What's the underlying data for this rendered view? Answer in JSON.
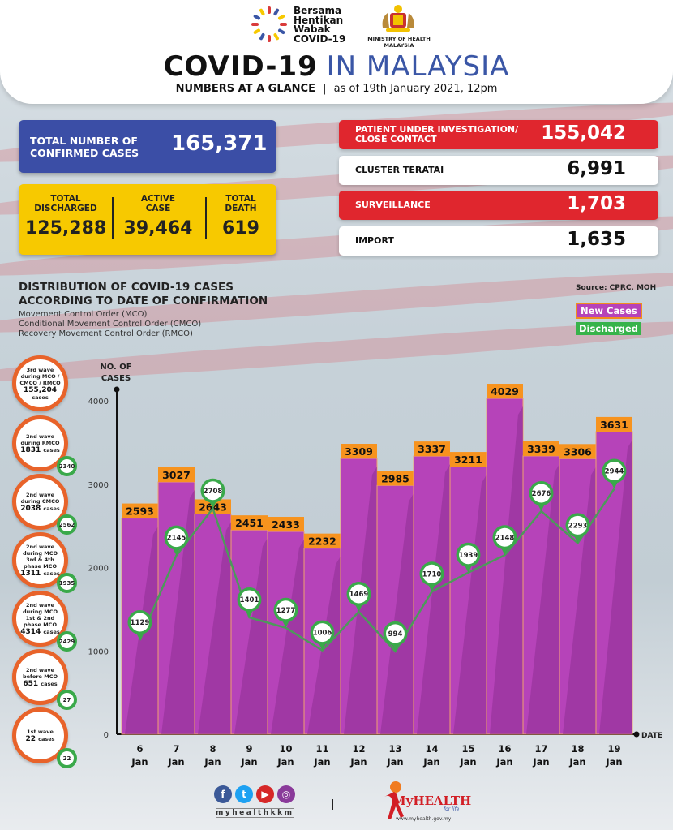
{
  "header": {
    "campaign_logo_text": [
      "Bersama",
      "Hentikan",
      "Wabak",
      "COVID-19"
    ],
    "ministry_text": "MINISTRY OF HEALTH MALAYSIA",
    "title_bold": "COVID-19",
    "title_light": "IN MALAYSIA",
    "subtitle_bold": "NUMBERS AT A GLANCE",
    "subtitle_separator": "|",
    "subtitle_date": "as of 19th January 2021, 12pm"
  },
  "summary": {
    "confirmed": {
      "label": "TOTAL NUMBER OF CONFIRMED CASES",
      "value": "165,371"
    },
    "discharged": {
      "label": "TOTAL DISCHARGED",
      "value": "125,288"
    },
    "active": {
      "label": "ACTIVE CASE",
      "value": "39,464"
    },
    "death": {
      "label": "TOTAL DEATH",
      "value": "619"
    }
  },
  "categories": [
    {
      "label": "PATIENT UNDER INVESTIGATION/ CLOSE CONTACT",
      "value": "155,042",
      "style": "red"
    },
    {
      "label": "CLUSTER TERATAI",
      "value": "6,991",
      "style": "white"
    },
    {
      "label": "SURVEILLANCE",
      "value": "1,703",
      "style": "red"
    },
    {
      "label": "IMPORT",
      "value": "1,635",
      "style": "white"
    }
  ],
  "section": {
    "title_line1": "DISTRIBUTION OF COVID-19 CASES",
    "title_line2": "ACCORDING TO DATE OF CONFIRMATION",
    "abbreviations": [
      "Movement Control Order (MCO)",
      "Conditional Movement Control Order (CMCO)",
      "Recovery Movement Control Order (RMCO)"
    ],
    "source": "Source: CPRC, MOH"
  },
  "waves": [
    {
      "title": "3rd wave during MCO / CMCO / RMCO",
      "count": "155,204",
      "unit": "cases",
      "discharged": null
    },
    {
      "title": "2nd wave during RMCO",
      "count": "1831",
      "unit": "cases",
      "discharged": "2340"
    },
    {
      "title": "2nd wave during CMCO",
      "count": "2038",
      "unit": "cases",
      "discharged": "2562"
    },
    {
      "title": "2nd wave during MCO 3rd & 4th phase MCO",
      "count": "1311",
      "unit": "cases",
      "discharged": "1935"
    },
    {
      "title": "2nd wave during MCO 1st & 2nd phase MCO",
      "count": "4314",
      "unit": "cases",
      "discharged": "2429"
    },
    {
      "title": "2nd wave before MCO",
      "count": "651",
      "unit": "cases",
      "discharged": "27"
    },
    {
      "title": "1st wave",
      "count": "22",
      "unit": "cases",
      "discharged": "22"
    }
  ],
  "chart_data": {
    "type": "bar",
    "title": "Distribution of COVID-19 cases according to date of confirmation",
    "xlabel": "DATE",
    "ylabel": "NO. OF CASES",
    "ylim": [
      0,
      4000
    ],
    "yticks": [
      0,
      1000,
      2000,
      3000,
      4000
    ],
    "grid": false,
    "legend_position": "top-right",
    "categories": [
      "6 Jan",
      "7 Jan",
      "8 Jan",
      "9 Jan",
      "10 Jan",
      "11 Jan",
      "12 Jan",
      "13 Jan",
      "14 Jan",
      "15 Jan",
      "16 Jan",
      "17 Jan",
      "18 Jan",
      "19 Jan"
    ],
    "series": [
      {
        "name": "New Cases",
        "type": "bar",
        "color": "#b643b9",
        "label_color": "#f7931e",
        "values": [
          2593,
          3027,
          2643,
          2451,
          2433,
          2232,
          3309,
          2985,
          3337,
          3211,
          4029,
          3339,
          3306,
          3631
        ]
      },
      {
        "name": "Discharged",
        "type": "line",
        "color": "#37b34a",
        "values": [
          1129,
          2145,
          2708,
          1401,
          1277,
          1006,
          1469,
          994,
          1710,
          1939,
          2148,
          2676,
          2293,
          2944
        ]
      }
    ]
  },
  "footer": {
    "social_icons": [
      "facebook-icon",
      "twitter-icon",
      "youtube-icon",
      "instagram-icon"
    ],
    "social_handle": "myhealthkkm",
    "separator": "|",
    "brand": "MyHEALTH",
    "brand_tagline": "for life",
    "url": "www.myhealth.gov.my"
  }
}
